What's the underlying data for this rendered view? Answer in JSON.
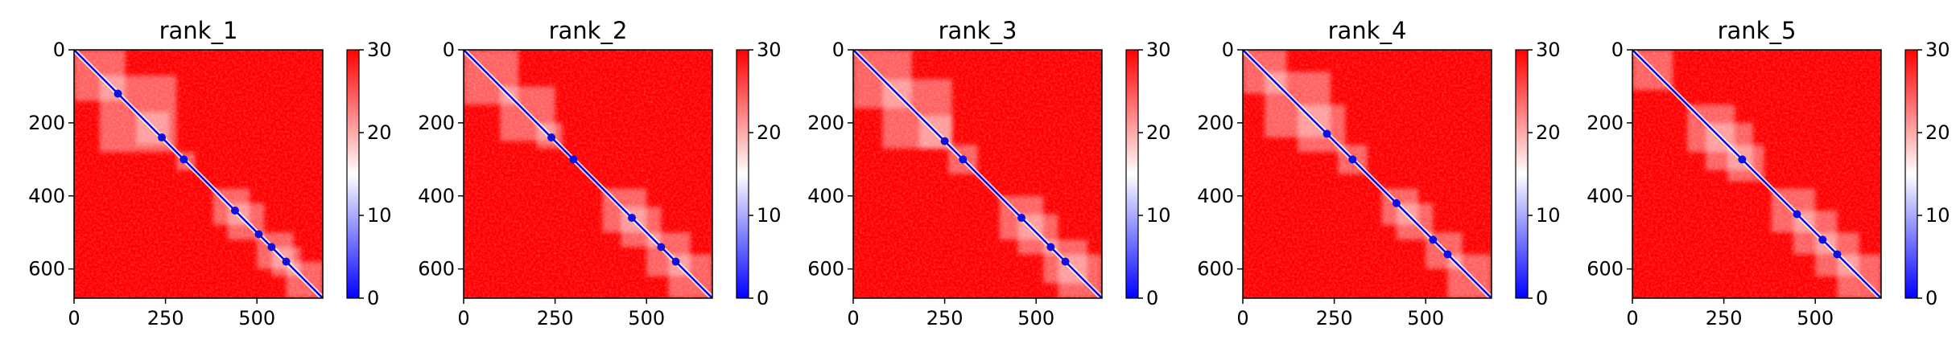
{
  "chart_data": [
    {
      "type": "heatmap",
      "title": "rank_1",
      "xlim": [
        0,
        680
      ],
      "ylim": [
        680,
        0
      ],
      "xticks": [
        0,
        250,
        500
      ],
      "yticks": [
        0,
        200,
        400,
        600
      ],
      "colorbar": {
        "min": 0,
        "max": 30,
        "ticks": [
          0,
          10,
          20,
          30
        ],
        "colors": [
          "#0000ff",
          "#ffffff",
          "#ff0000"
        ]
      },
      "low_blocks": [
        [
          0,
          140
        ],
        [
          70,
          280
        ],
        [
          170,
          260
        ],
        [
          280,
          330
        ],
        [
          380,
          480
        ],
        [
          420,
          520
        ],
        [
          500,
          600
        ],
        [
          540,
          620
        ],
        [
          580,
          680
        ]
      ],
      "diagonal_dots": [
        120,
        240,
        300,
        440,
        505,
        540,
        580
      ]
    },
    {
      "type": "heatmap",
      "title": "rank_2",
      "xlim": [
        0,
        680
      ],
      "ylim": [
        680,
        0
      ],
      "xticks": [
        0,
        250,
        500
      ],
      "yticks": [
        0,
        200,
        400,
        600
      ],
      "colorbar": {
        "min": 0,
        "max": 30,
        "ticks": [
          0,
          10,
          20,
          30
        ],
        "colors": [
          "#0000ff",
          "#ffffff",
          "#ff0000"
        ]
      },
      "low_blocks": [
        [
          0,
          150
        ],
        [
          100,
          250
        ],
        [
          200,
          270
        ],
        [
          380,
          500
        ],
        [
          430,
          540
        ],
        [
          500,
          620
        ],
        [
          560,
          680
        ]
      ],
      "diagonal_dots": [
        240,
        300,
        460,
        540,
        580
      ]
    },
    {
      "type": "heatmap",
      "title": "rank_3",
      "xlim": [
        0,
        680
      ],
      "ylim": [
        680,
        0
      ],
      "xticks": [
        0,
        250,
        500
      ],
      "yticks": [
        0,
        200,
        400,
        600
      ],
      "colorbar": {
        "min": 0,
        "max": 30,
        "ticks": [
          0,
          10,
          20,
          30
        ],
        "colors": [
          "#0000ff",
          "#ffffff",
          "#ff0000"
        ]
      },
      "low_blocks": [
        [
          0,
          160
        ],
        [
          80,
          270
        ],
        [
          180,
          270
        ],
        [
          260,
          340
        ],
        [
          400,
          520
        ],
        [
          450,
          560
        ],
        [
          520,
          640
        ],
        [
          560,
          680
        ]
      ],
      "diagonal_dots": [
        250,
        300,
        460,
        540,
        580
      ]
    },
    {
      "type": "heatmap",
      "title": "rank_4",
      "xlim": [
        0,
        680
      ],
      "ylim": [
        680,
        0
      ],
      "xticks": [
        0,
        250,
        500
      ],
      "yticks": [
        0,
        200,
        400,
        600
      ],
      "colorbar": {
        "min": 0,
        "max": 30,
        "ticks": [
          0,
          10,
          20,
          30
        ],
        "colors": [
          "#0000ff",
          "#ffffff",
          "#ff0000"
        ]
      },
      "low_blocks": [
        [
          0,
          120
        ],
        [
          60,
          240
        ],
        [
          150,
          280
        ],
        [
          260,
          340
        ],
        [
          380,
          480
        ],
        [
          420,
          520
        ],
        [
          500,
          600
        ],
        [
          560,
          680
        ]
      ],
      "diagonal_dots": [
        230,
        300,
        420,
        520,
        560
      ]
    },
    {
      "type": "heatmap",
      "title": "rank_5",
      "xlim": [
        0,
        680
      ],
      "ylim": [
        680,
        0
      ],
      "xticks": [
        0,
        250,
        500
      ],
      "yticks": [
        0,
        200,
        400,
        600
      ],
      "colorbar": {
        "min": 0,
        "max": 30,
        "ticks": [
          0,
          10,
          20,
          30
        ],
        "colors": [
          "#0000ff",
          "#ffffff",
          "#ff0000"
        ]
      },
      "low_blocks": [
        [
          0,
          110
        ],
        [
          150,
          280
        ],
        [
          200,
          330
        ],
        [
          260,
          360
        ],
        [
          380,
          500
        ],
        [
          440,
          560
        ],
        [
          500,
          620
        ],
        [
          560,
          680
        ]
      ],
      "diagonal_dots": [
        300,
        450,
        520,
        560
      ]
    }
  ]
}
